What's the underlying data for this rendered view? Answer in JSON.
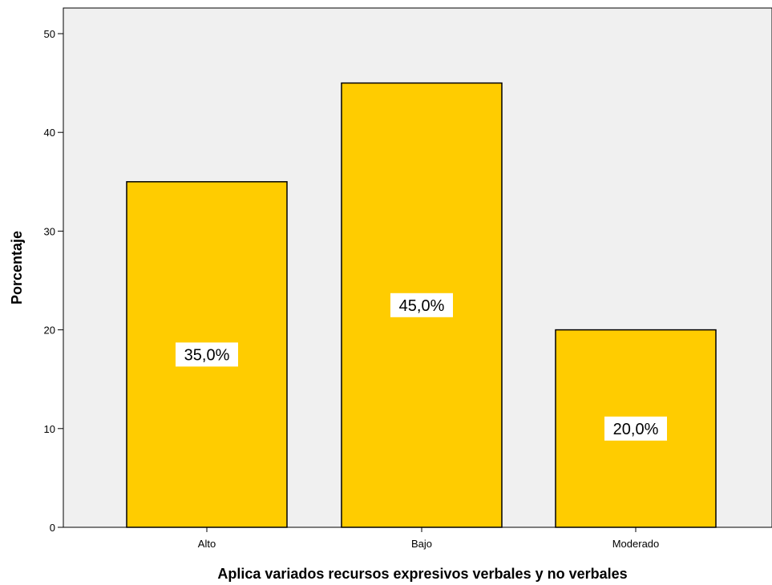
{
  "chart_data": {
    "type": "bar",
    "categories": [
      "Alto",
      "Bajo",
      "Moderado"
    ],
    "values": [
      35,
      45,
      20
    ],
    "data_labels": [
      "35,0%",
      "45,0%",
      "20,0%"
    ],
    "title": "",
    "xlabel": "Aplica variados recursos expresivos verbales y no verbales",
    "ylabel": "Porcentaje",
    "ylim": [
      0,
      52
    ],
    "yticks": [
      0,
      10,
      20,
      30,
      40,
      50
    ],
    "grid": false,
    "colors": {
      "bar_fill": "#FFCC00",
      "bar_stroke": "#000000",
      "plot_background": "#F0F0F0",
      "label_background": "#FFFFFF"
    }
  }
}
